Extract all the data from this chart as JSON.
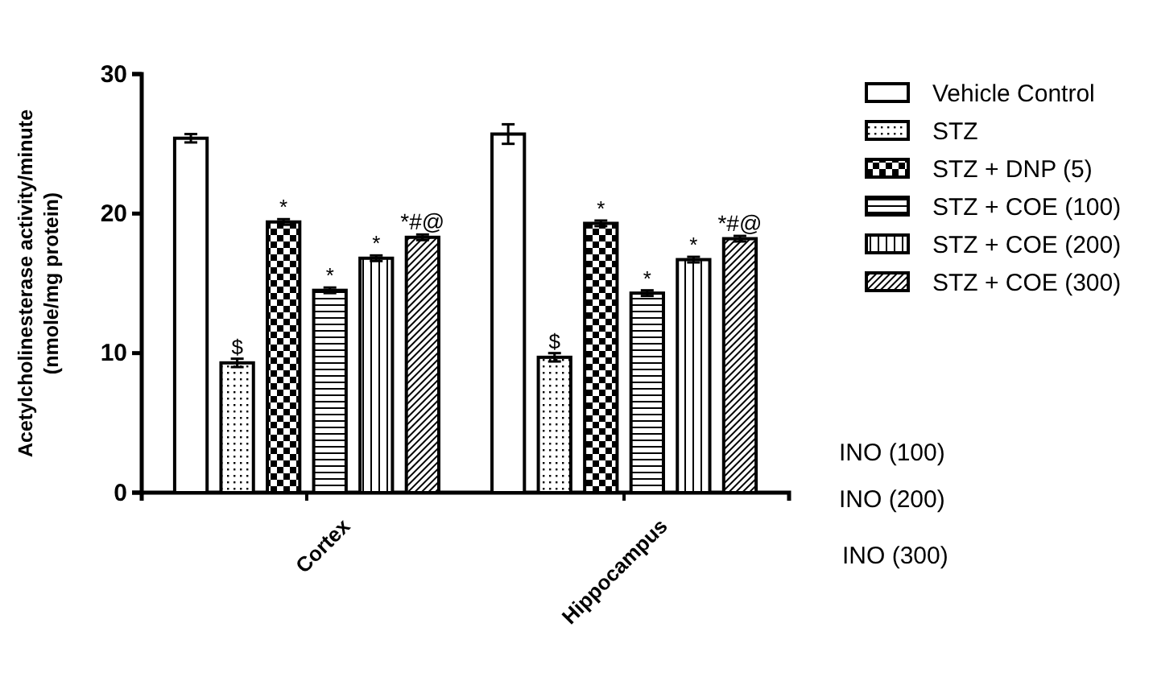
{
  "chart_data": {
    "type": "bar",
    "ylabel": "Acetylcholinesterase activity/minute\n(nmole/mg protein)",
    "categories": [
      "Cortex",
      "Hippocampus"
    ],
    "series": [
      {
        "name": "Vehicle Control",
        "color": "#000000",
        "values": [
          25.4,
          25.7
        ],
        "errors": [
          0.3,
          0.7
        ]
      },
      {
        "name": "STZ",
        "color": "#000000",
        "values": [
          9.3,
          9.7
        ],
        "errors": [
          0.3,
          0.3
        ]
      },
      {
        "name": "STZ + DNP (5)",
        "color": "#000000",
        "values": [
          19.4,
          19.3
        ],
        "errors": [
          0.2,
          0.2
        ]
      },
      {
        "name": "STZ + COE (100)",
        "color": "#000000",
        "values": [
          14.5,
          14.3
        ],
        "errors": [
          0.2,
          0.2
        ]
      },
      {
        "name": "STZ + COE (200)",
        "color": "#000000",
        "values": [
          16.8,
          16.7
        ],
        "errors": [
          0.2,
          0.2
        ]
      },
      {
        "name": "STZ + COE (300)",
        "color": "#000000",
        "values": [
          18.3,
          18.2
        ],
        "errors": [
          0.2,
          0.2
        ]
      }
    ],
    "ylim": [
      0,
      30
    ],
    "yticks": [
      0,
      10,
      20,
      30
    ],
    "legend": "right",
    "annotations": [
      "$",
      "*",
      "*",
      "*",
      "*#@",
      "$",
      "*",
      "*",
      "*",
      "*#@",
      "INO (100)",
      "INO (200)",
      "INO (300)"
    ]
  }
}
